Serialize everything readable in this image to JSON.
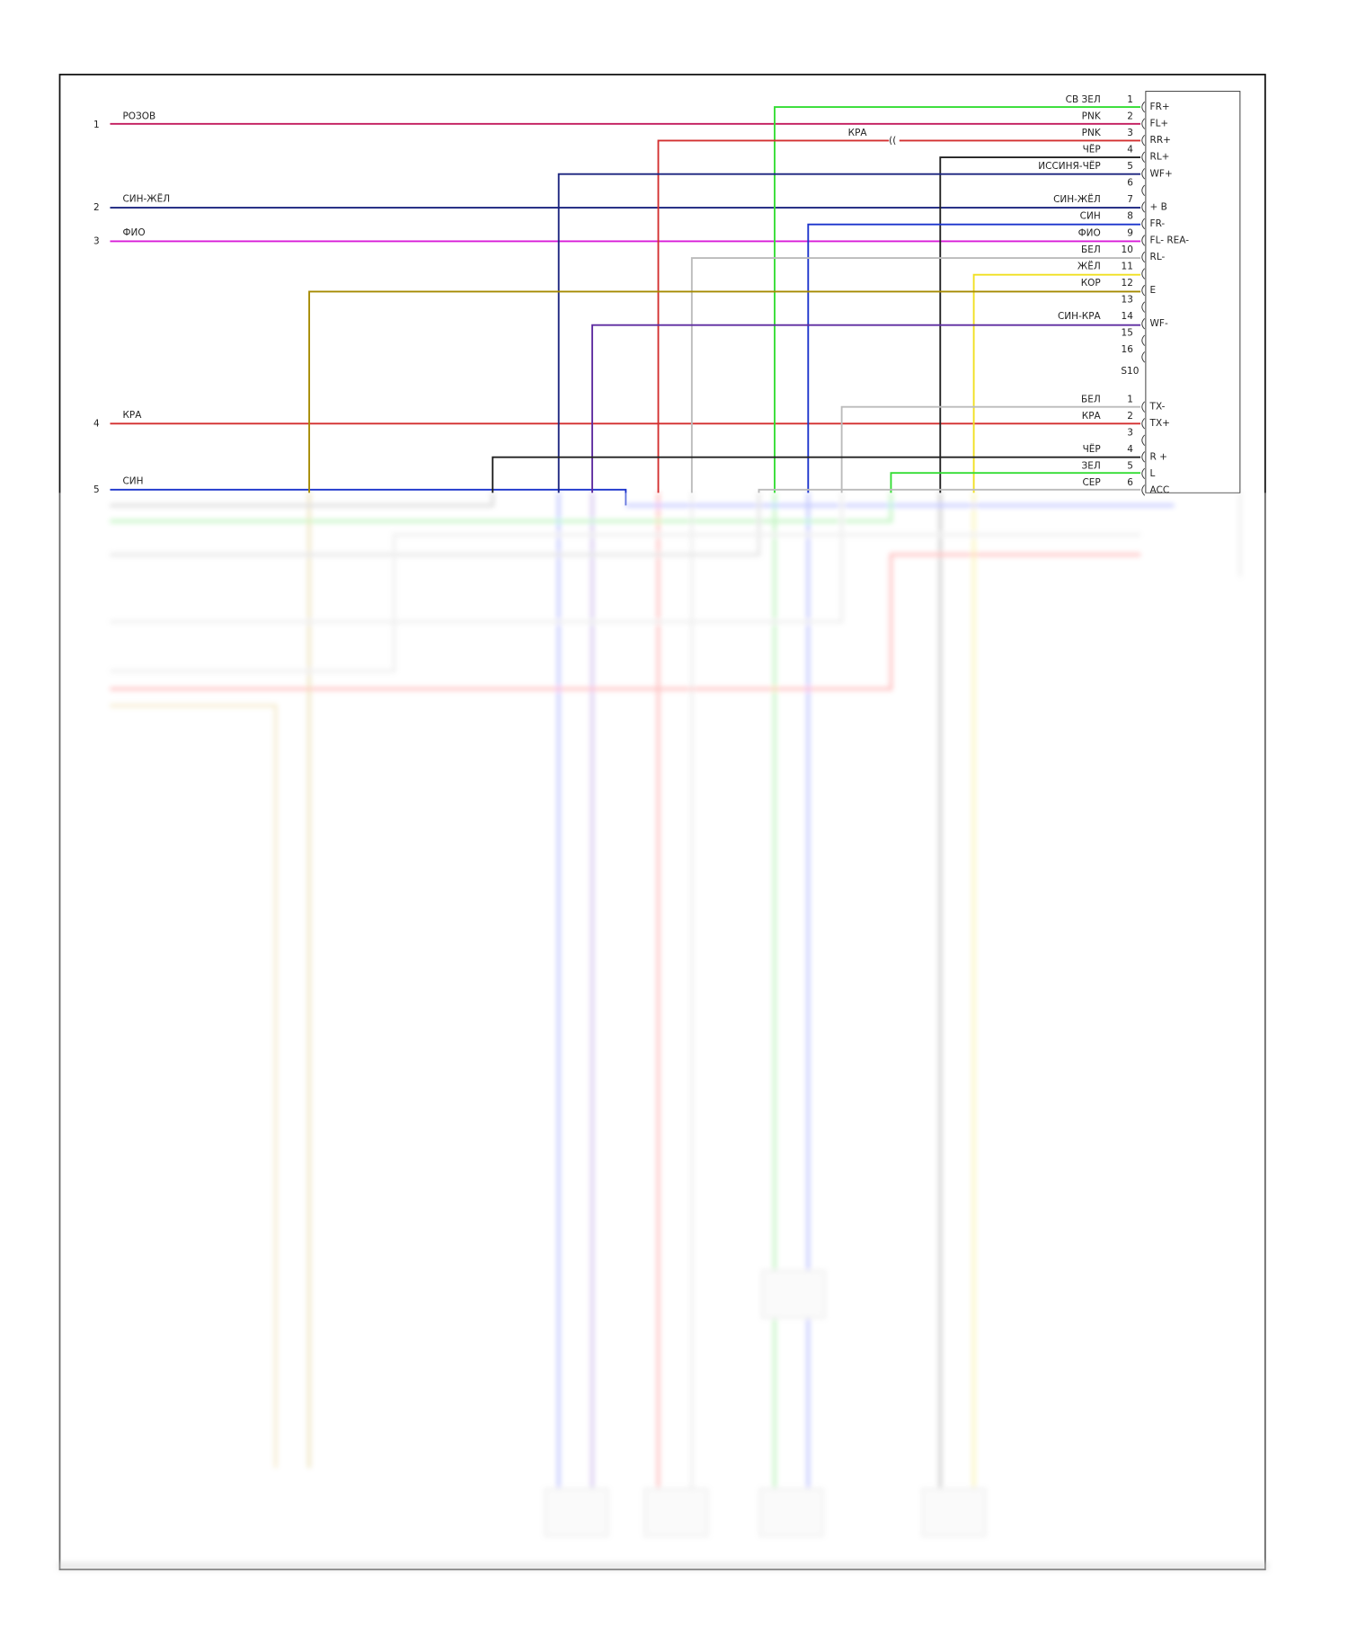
{
  "left_pins": [
    {
      "number": "1",
      "label": "РОЗОВ"
    },
    {
      "number": "2",
      "label": "СИН-ЖЁЛ"
    },
    {
      "number": "3",
      "label": "ФИО"
    },
    {
      "number": "4",
      "label": "КРА"
    },
    {
      "number": "5",
      "label": "СИН"
    }
  ],
  "splice_label": "КРА",
  "connector_a": {
    "name": "S10",
    "pins": [
      {
        "number": "1",
        "wire": "СВ ЗЕЛ",
        "function": "FR+"
      },
      {
        "number": "2",
        "wire": "PNK",
        "function": "FL+"
      },
      {
        "number": "3",
        "wire": "PNK",
        "function": "RR+"
      },
      {
        "number": "4",
        "wire": "ЧЁР",
        "function": "RL+"
      },
      {
        "number": "5",
        "wire": "ИССИНЯ-ЧЁР",
        "function": "WF+"
      },
      {
        "number": "6"
      },
      {
        "number": "7",
        "wire": "СИН-ЖЁЛ",
        "function": "+ B"
      },
      {
        "number": "8",
        "wire": "СИН",
        "function": "FR-"
      },
      {
        "number": "9",
        "wire": "ФИО",
        "function": "FL- REA-"
      },
      {
        "number": "10",
        "wire": "БЕЛ",
        "function": "RL-"
      },
      {
        "number": "11",
        "wire": "ЖЁЛ"
      },
      {
        "number": "12",
        "wire": "КОР",
        "function": "E"
      },
      {
        "number": "13"
      },
      {
        "number": "14",
        "wire": "СИН-КРА",
        "function": "WF-"
      },
      {
        "number": "15"
      },
      {
        "number": "16"
      }
    ]
  },
  "connector_b": {
    "pins": [
      {
        "number": "1",
        "wire": "БЕЛ",
        "function": "TX-"
      },
      {
        "number": "2",
        "wire": "КРА",
        "function": "TX+"
      },
      {
        "number": "3"
      },
      {
        "number": "4",
        "wire": "ЧЁР",
        "function": "R +"
      },
      {
        "number": "5",
        "wire": "ЗЕЛ",
        "function": "L"
      },
      {
        "number": "6",
        "wire": "СЕР",
        "function": "ACC"
      }
    ]
  }
}
